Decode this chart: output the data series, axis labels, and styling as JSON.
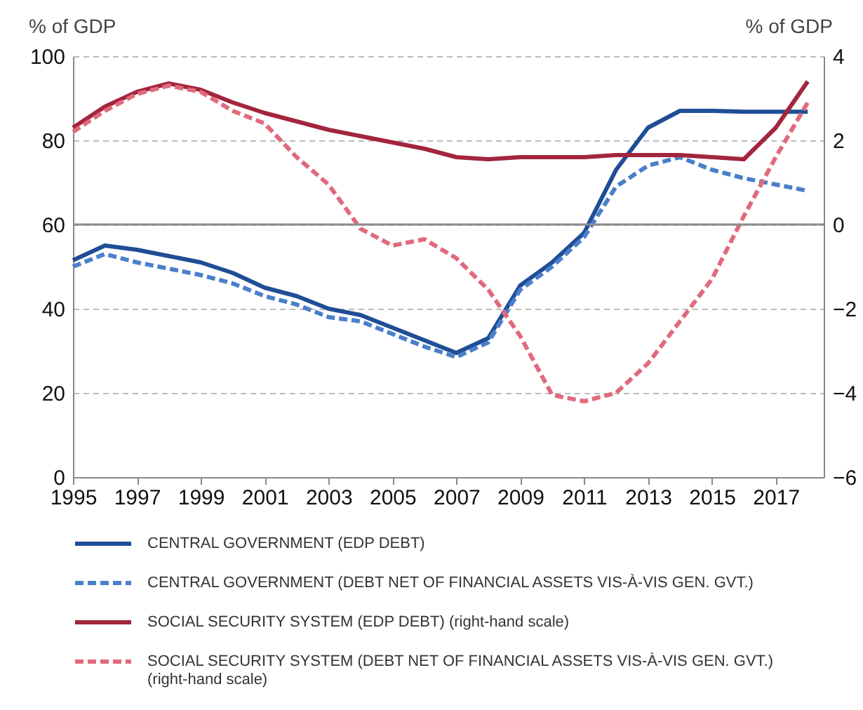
{
  "chart_data": {
    "type": "line",
    "xlabel": null,
    "ylabel": "% of GDP",
    "y2label": "% of GDP",
    "x": [
      1995,
      1996,
      1997,
      1998,
      1999,
      2000,
      2001,
      2002,
      2003,
      2004,
      2005,
      2006,
      2007,
      2008,
      2009,
      2010,
      2011,
      2012,
      2013,
      2014,
      2015,
      2016,
      2017,
      2018
    ],
    "xlim": [
      1995,
      2018.5
    ],
    "xticks": [
      1995,
      1997,
      1999,
      2001,
      2003,
      2005,
      2007,
      2009,
      2011,
      2013,
      2015,
      2017
    ],
    "ylim": [
      0,
      100
    ],
    "yticks": [
      0,
      20,
      40,
      60,
      80,
      100
    ],
    "y2lim": [
      -6,
      4
    ],
    "y2ticks": [
      -6,
      -4,
      -2,
      0,
      2,
      4
    ],
    "grid": "y",
    "legend": "bottom",
    "ref_lines": [
      {
        "axis": "y2",
        "value": 0,
        "color": "#8c8c8c",
        "line_style": "solid"
      }
    ],
    "series": [
      {
        "name": "CENTRAL GOVERNMENT (EDP DEBT)",
        "color": "#1f4e96",
        "line_style": "solid",
        "values": [
          51.5,
          55,
          54,
          52.5,
          51,
          48.5,
          45,
          43,
          40,
          38.5,
          35.5,
          32.5,
          29.5,
          33,
          45.5,
          51,
          58,
          73,
          83,
          87,
          87,
          86.8,
          86.8,
          86.8
        ]
      },
      {
        "name": "CENTRAL GOVERNMENT (DEBT NET OF FINANCIAL ASSETS VIS-À-VIS GEN. GVT.)",
        "color": "#4a7fcb",
        "line_style": "dashed",
        "values": [
          50,
          53,
          51,
          49.5,
          48,
          46,
          43,
          41,
          38,
          37,
          34,
          31,
          28.5,
          32,
          44.5,
          50,
          57,
          69,
          74,
          76,
          73,
          71,
          69.5,
          68
        ]
      },
      {
        "name": "SOCIAL SECURITY SYSTEM (EDP DEBT) (right-hand scale)",
        "color": "#a3253d",
        "line_style": "solid",
        "axis": "y2",
        "values": [
          2.3,
          2.8,
          3.15,
          3.35,
          3.2,
          2.9,
          2.65,
          2.45,
          2.25,
          2.1,
          1.95,
          1.8,
          1.6,
          1.55,
          1.6,
          1.6,
          1.6,
          1.65,
          1.65,
          1.65,
          1.6,
          1.55,
          2.3,
          3.4
        ]
      },
      {
        "name": "SOCIAL SECURITY SYSTEM (DEBT NET OF FINANCIAL ASSETS VIS-À-VIS GEN. GVT.) (right-hand scale)",
        "color": "#e06a7c",
        "line_style": "dashed",
        "axis": "y2",
        "values": [
          2.2,
          2.7,
          3.1,
          3.3,
          3.15,
          2.7,
          2.4,
          1.6,
          0.95,
          -0.1,
          -0.5,
          -0.35,
          -0.8,
          -1.55,
          -2.65,
          -4.05,
          -4.2,
          -4.0,
          -3.3,
          -2.3,
          -1.3,
          0.2,
          1.6,
          2.9
        ]
      }
    ]
  }
}
